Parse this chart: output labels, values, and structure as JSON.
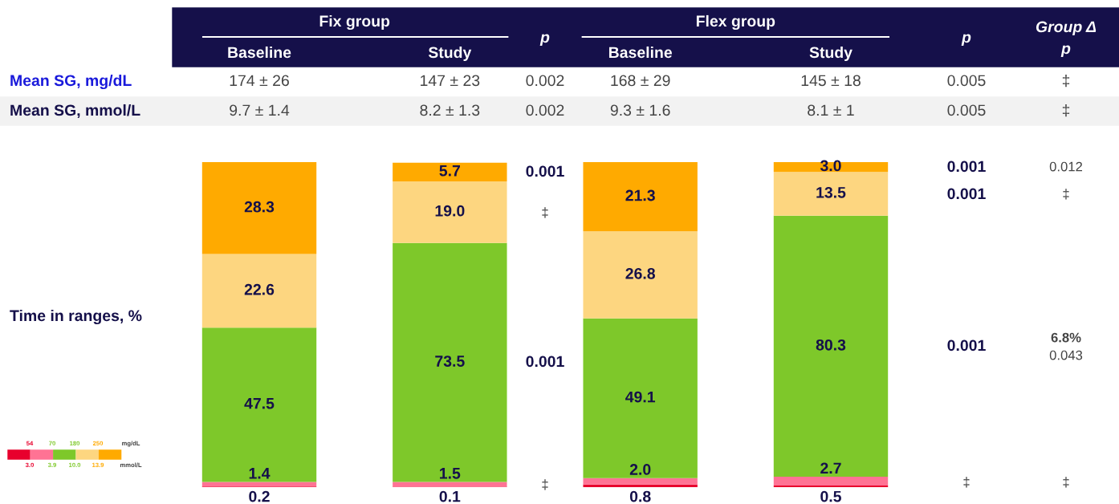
{
  "chart_data": {
    "type": "bar",
    "stacked": true,
    "categories": [
      null,
      null,
      null,
      null
    ],
    "series": [
      {
        "color": "#e8002d",
        "values": [
          0.2,
          0.1,
          0.8,
          0.5
        ],
        "value_labels": [
          "0.2",
          "0.1",
          "0.8",
          "0.5"
        ]
      },
      {
        "color": "#ff7394",
        "values": [
          1.4,
          1.5,
          2.0,
          2.7
        ],
        "value_labels": [
          "1.4",
          "1.5",
          "2.0",
          "2.7"
        ]
      },
      {
        "color": "#7ec82a",
        "values": [
          47.5,
          73.5,
          49.1,
          80.3
        ],
        "value_labels": [
          "47.5",
          "73.5",
          "49.1",
          "80.3"
        ]
      },
      {
        "color": "#fdd680",
        "values": [
          22.6,
          19.0,
          26.8,
          13.5
        ],
        "value_labels": [
          "22.6",
          "19.0",
          "26.8",
          "13.5"
        ]
      },
      {
        "color": "#ffaa00",
        "values": [
          28.3,
          5.7,
          21.3,
          3.0
        ],
        "value_labels": [
          "28.3",
          "5.7",
          "21.3",
          "3.0"
        ]
      }
    ],
    "annotations": [
      "Fix group",
      "Flex group",
      "Baseline",
      "Study",
      "p",
      "Baseline",
      "Study",
      "p",
      "Group Δ",
      "p",
      "Mean SG, mg/dL",
      "174 ± 26",
      "147 ± 23",
      "0.002",
      "168 ± 29",
      "145 ± 18",
      "0.005",
      "‡",
      "Mean SG, mmol/L",
      "9.7 ± 1.4",
      "8.2 ± 1.3",
      "0.002",
      "9.3 ± 1.6",
      "8.1 ± 1",
      "0.005",
      "‡",
      "Time in ranges, %",
      "0.001",
      "‡",
      "0.001",
      "‡",
      "0.001",
      "0.001",
      "0.001",
      "‡",
      "0.012",
      "‡",
      "6.8%",
      "0.043",
      "‡",
      "54",
      "70",
      "180",
      "250",
      "mg/dL",
      "3.0",
      "3.9",
      "10.0",
      "13.9",
      "mmol/L"
    ]
  }
}
